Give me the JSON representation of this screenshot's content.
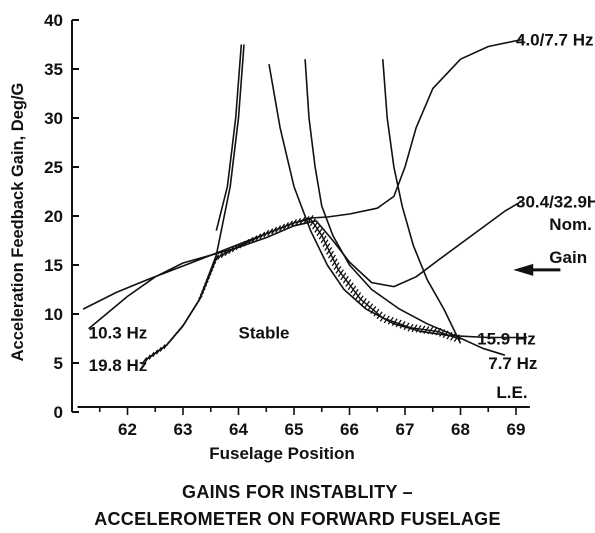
{
  "chart_data": {
    "type": "line",
    "title": "",
    "xlabel": "Fuselage Position",
    "ylabel": "Acceleration Feedback Gain, Deg/G",
    "xlim": [
      61,
      69
    ],
    "ylim": [
      0,
      40
    ],
    "x_ticks": [
      62,
      63,
      64,
      65,
      66,
      67,
      68,
      69
    ],
    "y_ticks": [
      0,
      5,
      10,
      15,
      20,
      25,
      30,
      35,
      40
    ],
    "x_end_label": "L.E.",
    "grid": false,
    "series": [
      {
        "name": "10.3 Hz",
        "points": [
          [
            61.2,
            10.5
          ],
          [
            61.8,
            12.2
          ],
          [
            62.4,
            13.6
          ],
          [
            63.0,
            14.9
          ],
          [
            63.5,
            16.0
          ],
          [
            64.0,
            17.1
          ],
          [
            64.5,
            18.2
          ],
          [
            65.0,
            19.3
          ],
          [
            65.3,
            19.8
          ],
          [
            65.6,
            19.9
          ],
          [
            66.0,
            20.2
          ],
          [
            66.5,
            20.8
          ],
          [
            66.8,
            22.0
          ],
          [
            67.0,
            25.0
          ],
          [
            67.2,
            29.0
          ],
          [
            67.5,
            33.0
          ],
          [
            68.0,
            36.0
          ],
          [
            68.5,
            37.3
          ],
          [
            69.1,
            38.0
          ]
        ]
      },
      {
        "name": "19.8 Hz",
        "points": [
          [
            62.3,
            5.2
          ],
          [
            62.7,
            6.8
          ],
          [
            63.0,
            8.8
          ],
          [
            63.3,
            11.5
          ],
          [
            63.6,
            16.0
          ],
          [
            63.85,
            23.0
          ],
          [
            64.0,
            30.0
          ],
          [
            64.1,
            37.5
          ]
        ]
      },
      {
        "name": "30.4/32.9Hz",
        "points": [
          [
            61.3,
            8.5
          ],
          [
            62.0,
            11.8
          ],
          [
            62.5,
            13.8
          ],
          [
            63.0,
            15.2
          ],
          [
            63.5,
            16.0
          ],
          [
            64.0,
            16.8
          ],
          [
            64.5,
            17.8
          ],
          [
            65.0,
            19.0
          ],
          [
            65.4,
            19.5
          ],
          [
            65.7,
            17.5
          ],
          [
            66.0,
            15.3
          ],
          [
            66.4,
            13.2
          ],
          [
            66.8,
            12.8
          ],
          [
            67.2,
            13.8
          ],
          [
            67.6,
            15.5
          ],
          [
            68.2,
            18.0
          ],
          [
            68.8,
            20.5
          ],
          [
            69.1,
            21.5
          ]
        ]
      },
      {
        "name": "15.9 Hz",
        "points": [
          [
            63.6,
            18.5
          ],
          [
            63.8,
            23.0
          ],
          [
            63.95,
            30.0
          ],
          [
            64.05,
            37.5
          ]
        ]
      },
      {
        "name": "",
        "points": [
          [
            64.55,
            35.5
          ],
          [
            64.75,
            29.0
          ],
          [
            65.0,
            23.0
          ],
          [
            65.3,
            18.5
          ],
          [
            65.6,
            15.0
          ],
          [
            65.9,
            12.5
          ],
          [
            66.3,
            10.5
          ],
          [
            66.8,
            9.0
          ],
          [
            67.3,
            8.2
          ],
          [
            67.8,
            7.8
          ],
          [
            68.5,
            7.6
          ],
          [
            69.2,
            7.6
          ]
        ]
      },
      {
        "name": "7.7 Hz",
        "points": [
          [
            65.2,
            36.0
          ],
          [
            65.27,
            30.0
          ],
          [
            65.38,
            25.0
          ],
          [
            65.5,
            21.0
          ],
          [
            65.7,
            18.0
          ],
          [
            66.0,
            15.0
          ],
          [
            66.4,
            12.5
          ],
          [
            66.9,
            10.5
          ],
          [
            67.4,
            9.0
          ],
          [
            67.9,
            7.8
          ],
          [
            68.4,
            6.5
          ],
          [
            68.8,
            5.8
          ]
        ]
      },
      {
        "name": "",
        "points": [
          [
            66.6,
            36.0
          ],
          [
            66.68,
            30.0
          ],
          [
            66.8,
            25.0
          ],
          [
            66.95,
            21.0
          ],
          [
            67.15,
            17.0
          ],
          [
            67.4,
            13.5
          ],
          [
            67.7,
            10.5
          ],
          [
            68.0,
            7.0
          ]
        ]
      }
    ],
    "stable_boundary": [
      [
        62.3,
        5.2
      ],
      [
        62.7,
        6.8
      ],
      [
        63.0,
        8.8
      ],
      [
        63.3,
        11.5
      ],
      [
        63.6,
        15.7
      ],
      [
        64.0,
        16.9
      ],
      [
        64.5,
        18.2
      ],
      [
        65.0,
        19.3
      ],
      [
        65.3,
        19.7
      ],
      [
        65.5,
        18.0
      ],
      [
        65.8,
        14.5
      ],
      [
        66.2,
        11.5
      ],
      [
        66.6,
        9.6
      ],
      [
        67.1,
        8.6
      ],
      [
        67.6,
        8.2
      ],
      [
        68.0,
        7.4
      ]
    ],
    "annotations": [
      {
        "text": "4.0/7.7 Hz",
        "x": 69.0,
        "y": 38.0
      },
      {
        "text": "30.4/32.9Hz",
        "x": 69.0,
        "y": 21.5
      },
      {
        "text": "10.3 Hz",
        "x": 61.3,
        "y": 8.1
      },
      {
        "text": "19.8 Hz",
        "x": 61.3,
        "y": 4.8
      },
      {
        "text": "Stable",
        "x": 64.0,
        "y": 8.1
      },
      {
        "text": "15.9 Hz",
        "x": 68.3,
        "y": 7.5
      },
      {
        "text": "7.7 Hz",
        "x": 68.5,
        "y": 5.0
      },
      {
        "text": "Nom.",
        "x": 69.6,
        "y": 19.2
      },
      {
        "text": "Gain",
        "x": 69.6,
        "y": 15.8
      }
    ],
    "nominal_gain": 14.5
  },
  "caption": {
    "line1": "GAINS FOR INSTABLITY –",
    "line2": "ACCELEROMETER ON FORWARD FUSELAGE"
  },
  "colors": {
    "ink": "#111111",
    "background": "#ffffff"
  }
}
